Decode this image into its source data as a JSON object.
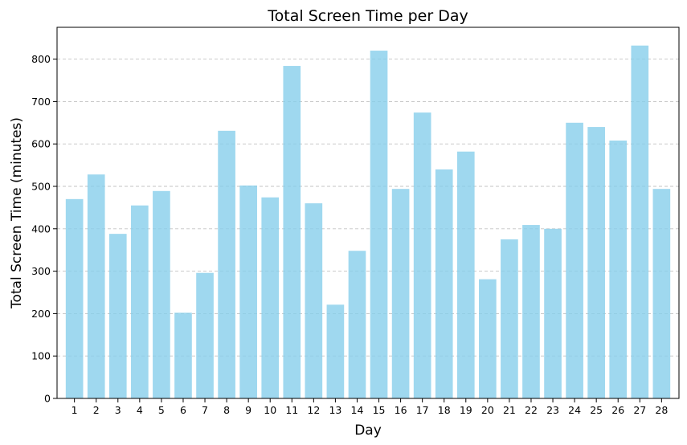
{
  "chart_data": {
    "type": "bar",
    "title": "Total Screen Time per Day",
    "xlabel": "Day",
    "ylabel": "Total Screen Time (minutes)",
    "categories": [
      "1",
      "2",
      "3",
      "4",
      "5",
      "6",
      "7",
      "8",
      "9",
      "10",
      "11",
      "12",
      "13",
      "14",
      "15",
      "16",
      "17",
      "18",
      "19",
      "20",
      "21",
      "22",
      "23",
      "24",
      "25",
      "26",
      "27",
      "28"
    ],
    "values": [
      470,
      528,
      388,
      455,
      489,
      202,
      296,
      631,
      502,
      474,
      784,
      460,
      221,
      348,
      820,
      494,
      674,
      540,
      582,
      281,
      375,
      409,
      400,
      650,
      640,
      608,
      832,
      494
    ],
    "ylim": [
      0,
      875
    ],
    "yticks": [
      0,
      100,
      200,
      300,
      400,
      500,
      600,
      700,
      800
    ],
    "grid": "y-dashed",
    "bar_color": "#87ceeb",
    "bar_opacity": 0.8
  }
}
